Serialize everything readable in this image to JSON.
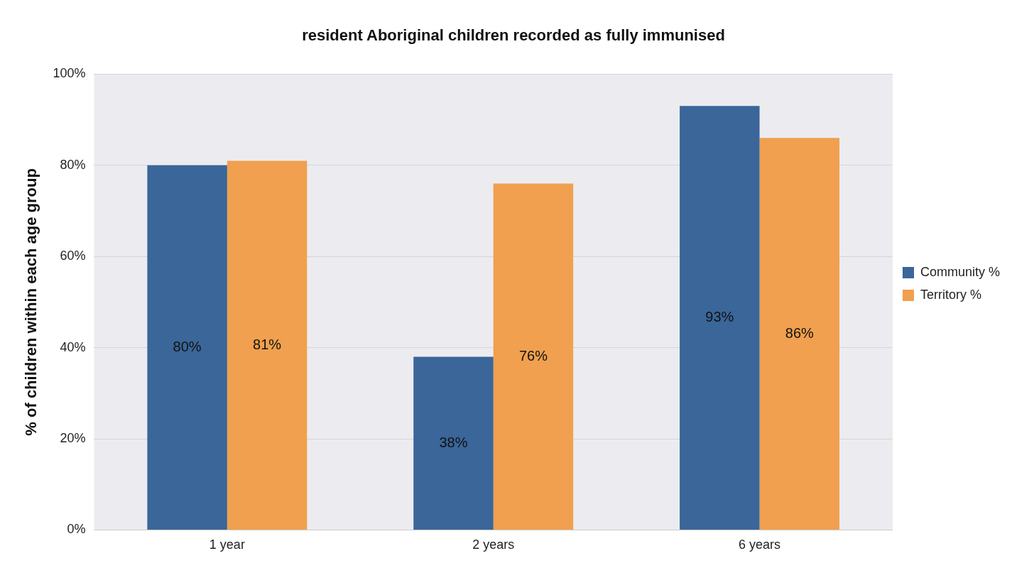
{
  "chart_data": {
    "type": "bar",
    "title": "resident Aboriginal children recorded as fully immunised",
    "ylabel": "% of children within each age group",
    "categories": [
      "1 year",
      "2 years",
      "6 years"
    ],
    "series": [
      {
        "name": "Community %",
        "color": "#3a6699",
        "values": [
          80,
          38,
          93
        ],
        "value_labels": [
          "80%",
          "38%",
          "93%"
        ]
      },
      {
        "name": "Territory %",
        "color": "#f0a04e",
        "values": [
          81,
          76,
          86
        ],
        "value_labels": [
          "81%",
          "76%",
          "86%"
        ]
      }
    ],
    "ylim": [
      0,
      100
    ],
    "yticks": [
      {
        "value": 0,
        "label": "0%"
      },
      {
        "value": 20,
        "label": "20%"
      },
      {
        "value": 40,
        "label": "40%"
      },
      {
        "value": 60,
        "label": "60%"
      },
      {
        "value": 80,
        "label": "80%"
      },
      {
        "value": 100,
        "label": "100%"
      }
    ],
    "grid": "y",
    "legend": "right"
  }
}
